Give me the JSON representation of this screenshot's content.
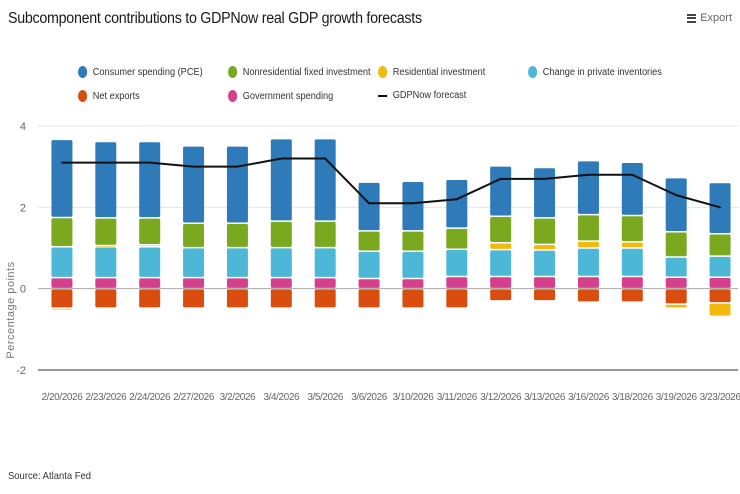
{
  "header": {
    "title": "Subcomponent contributions to GDPNow real GDP growth forecasts",
    "export_label": "Export"
  },
  "footer": {
    "source": "Source: Atlanta Fed"
  },
  "legend": [
    {
      "key": "pce",
      "label": "Consumer spending (PCE)",
      "color": "#2f7ab9",
      "shape": "dot"
    },
    {
      "key": "nrfi",
      "label": "Nonresidential fixed investment",
      "color": "#7aa81e",
      "shape": "dot"
    },
    {
      "key": "res",
      "label": "Residential investment",
      "color": "#f2b90f",
      "shape": "dot"
    },
    {
      "key": "cpi",
      "label": "Change in private inventories",
      "color": "#4db7d8",
      "shape": "dot"
    },
    {
      "key": "nx",
      "label": "Net exports",
      "color": "#d94e0f",
      "shape": "dot"
    },
    {
      "key": "gov",
      "label": "Government spending",
      "color": "#d63f8c",
      "shape": "dot"
    },
    {
      "key": "gdpnow",
      "label": "GDPNow forecast",
      "color": "#111111",
      "shape": "line"
    }
  ],
  "chart_data": {
    "type": "bar",
    "stacked": true,
    "title": "Subcomponent contributions to GDPNow real GDP growth forecasts",
    "xlabel": "",
    "ylabel": "Percentage points",
    "ylim": [
      -2,
      4
    ],
    "yticks": [
      -2,
      0,
      2,
      4
    ],
    "grid": true,
    "legend_position": "top",
    "categories": [
      "2/20/2026",
      "2/23/2026",
      "2/24/2026",
      "2/27/2026",
      "3/2/2026",
      "3/4/2026",
      "3/5/2026",
      "3/6/2026",
      "3/10/2026",
      "3/11/2026",
      "3/12/2026",
      "3/13/2026",
      "3/16/2026",
      "3/18/2026",
      "3/19/2026",
      "3/23/2026"
    ],
    "series": [
      {
        "key": "gov",
        "name": "Government spending",
        "color": "#d63f8c",
        "values": [
          0.27,
          0.27,
          0.27,
          0.27,
          0.27,
          0.27,
          0.27,
          0.25,
          0.25,
          0.3,
          0.3,
          0.3,
          0.3,
          0.3,
          0.28,
          0.28
        ]
      },
      {
        "key": "cpi",
        "name": "Change in private inventories",
        "color": "#4db7d8",
        "values": [
          0.76,
          0.76,
          0.76,
          0.74,
          0.74,
          0.74,
          0.74,
          0.67,
          0.67,
          0.67,
          0.66,
          0.65,
          0.7,
          0.7,
          0.5,
          0.52
        ]
      },
      {
        "key": "res",
        "name": "Residential investment",
        "color": "#f2b90f",
        "values": [
          -0.05,
          0.03,
          0.05,
          0.0,
          0.0,
          0.0,
          0.0,
          0.0,
          0.0,
          0.0,
          0.17,
          0.14,
          0.17,
          0.15,
          -0.1,
          -0.33
        ]
      },
      {
        "key": "nrfi",
        "name": "Nonresidential fixed investment",
        "color": "#7aa81e",
        "values": [
          0.72,
          0.68,
          0.66,
          0.6,
          0.6,
          0.65,
          0.65,
          0.5,
          0.5,
          0.52,
          0.65,
          0.65,
          0.65,
          0.65,
          0.62,
          0.55
        ]
      },
      {
        "key": "pce",
        "name": "Consumer spending (PCE)",
        "color": "#2f7ab9",
        "values": [
          1.92,
          1.88,
          1.88,
          1.9,
          1.9,
          2.03,
          2.03,
          1.2,
          1.22,
          1.2,
          1.24,
          1.24,
          1.33,
          1.31,
          1.33,
          1.26
        ]
      },
      {
        "key": "nx",
        "name": "Net exports",
        "color": "#d94e0f",
        "values": [
          -0.48,
          -0.48,
          -0.48,
          -0.48,
          -0.48,
          -0.48,
          -0.48,
          -0.48,
          -0.48,
          -0.48,
          -0.3,
          -0.3,
          -0.33,
          -0.33,
          -0.38,
          -0.35
        ]
      }
    ],
    "line": {
      "key": "gdpnow",
      "name": "GDPNow forecast",
      "color": "#111111",
      "values": [
        3.1,
        3.1,
        3.1,
        3.0,
        3.0,
        3.2,
        3.2,
        2.1,
        2.1,
        2.2,
        2.7,
        2.7,
        2.8,
        2.8,
        2.3,
        2.0
      ]
    }
  }
}
